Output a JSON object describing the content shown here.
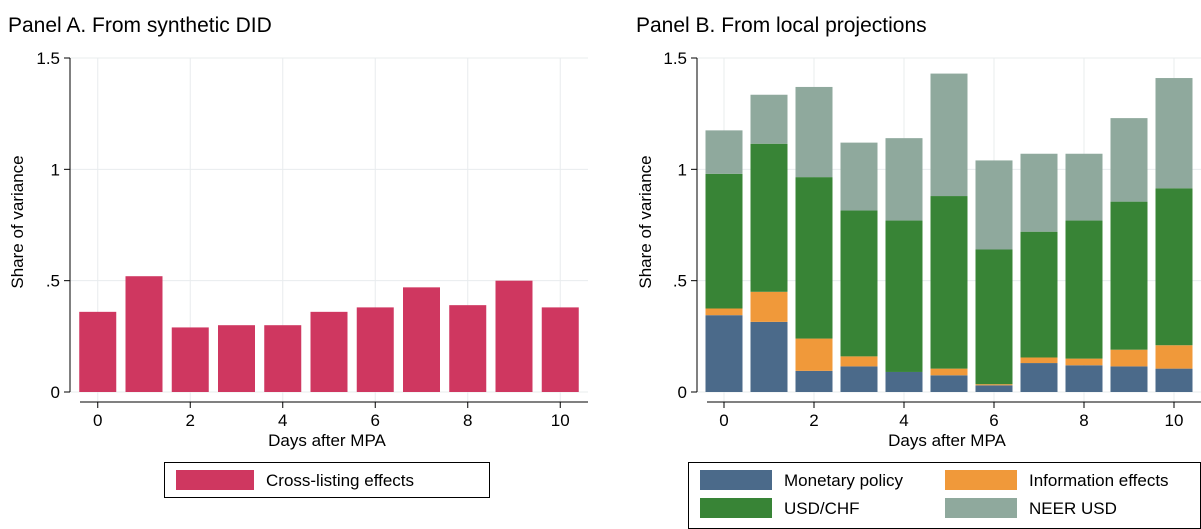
{
  "chart_data": [
    {
      "type": "bar",
      "title": "Panel A. From synthetic DID",
      "xlabel": "Days after MPA",
      "ylabel": "Share of variance",
      "ylim": [
        0,
        1.5
      ],
      "yticks": [
        0,
        0.5,
        1,
        1.5
      ],
      "ytick_labels": [
        "0",
        ".5",
        "1",
        "1.5"
      ],
      "xticks": [
        0,
        2,
        4,
        6,
        8,
        10
      ],
      "xtick_labels": [
        "0",
        "2",
        "4",
        "6",
        "8",
        "10"
      ],
      "x": [
        0,
        1,
        2,
        3,
        4,
        5,
        6,
        7,
        8,
        9,
        10
      ],
      "grid": true,
      "legend_position": "bottom",
      "series": [
        {
          "name": "Cross-listing effects",
          "color": "#cf3760",
          "values": [
            0.36,
            0.52,
            0.29,
            0.3,
            0.3,
            0.36,
            0.38,
            0.47,
            0.39,
            0.5,
            0.38
          ]
        }
      ]
    },
    {
      "type": "bar",
      "stacked": true,
      "title": "Panel B. From local projections",
      "xlabel": "Days after MPA",
      "ylabel": "Share of variance",
      "ylim": [
        0,
        1.5
      ],
      "yticks": [
        0,
        0.5,
        1,
        1.5
      ],
      "ytick_labels": [
        "0",
        ".5",
        "1",
        "1.5"
      ],
      "xticks": [
        0,
        2,
        4,
        6,
        8,
        10
      ],
      "xtick_labels": [
        "0",
        "2",
        "4",
        "6",
        "8",
        "10"
      ],
      "x": [
        0,
        1,
        2,
        3,
        4,
        5,
        6,
        7,
        8,
        9,
        10
      ],
      "grid": true,
      "legend_position": "bottom",
      "series": [
        {
          "name": "Monetary policy",
          "color": "#4b6a8a",
          "values": [
            0.345,
            0.315,
            0.095,
            0.115,
            0.09,
            0.075,
            0.03,
            0.13,
            0.12,
            0.115,
            0.105
          ]
        },
        {
          "name": "Information effects",
          "color": "#f0993a",
          "values": [
            0.03,
            0.135,
            0.145,
            0.045,
            0.0,
            0.03,
            0.005,
            0.025,
            0.03,
            0.075,
            0.105
          ]
        },
        {
          "name": "USD/CHF",
          "color": "#388436",
          "values": [
            0.605,
            0.665,
            0.725,
            0.655,
            0.68,
            0.775,
            0.605,
            0.565,
            0.62,
            0.665,
            0.705
          ]
        },
        {
          "name": "NEER USD",
          "color": "#8fa99d",
          "values": [
            0.195,
            0.22,
            0.405,
            0.305,
            0.37,
            0.55,
            0.4,
            0.35,
            0.3,
            0.375,
            0.495
          ]
        }
      ]
    }
  ]
}
